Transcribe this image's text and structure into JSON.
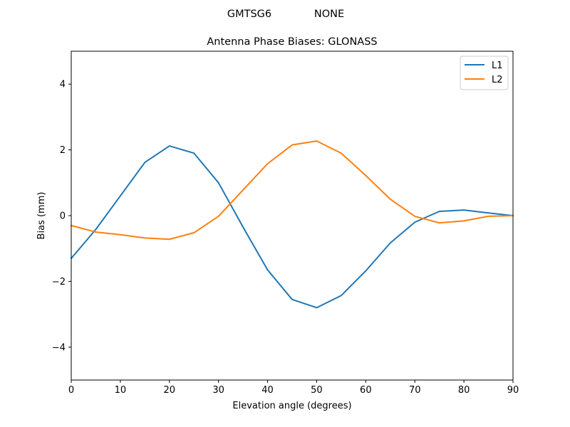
{
  "header": {
    "antenna": "GMTSG6",
    "radome": "NONE"
  },
  "chart_data": {
    "type": "line",
    "title": "Antenna Phase Biases: GLONASS",
    "xlabel": "Elevation angle (degrees)",
    "ylabel": "Bias (mm)",
    "xlim": [
      0,
      90
    ],
    "ylim": [
      -5,
      5
    ],
    "x_ticks": [
      0,
      10,
      20,
      30,
      40,
      50,
      60,
      70,
      80,
      90
    ],
    "y_ticks": [
      -4,
      -2,
      0,
      2,
      4
    ],
    "y_tick_labels": [
      "−4",
      "−2",
      "0",
      "2",
      "4"
    ],
    "legend_position": "top-right",
    "grid": false,
    "x": [
      0,
      5,
      10,
      15,
      20,
      25,
      30,
      35,
      40,
      45,
      50,
      55,
      60,
      65,
      70,
      75,
      80,
      85,
      90
    ],
    "series": [
      {
        "name": "L1",
        "color": "#1f77b4",
        "values": [
          -1.3,
          -0.42,
          0.6,
          1.62,
          2.12,
          1.9,
          1.0,
          -0.35,
          -1.65,
          -2.55,
          -2.8,
          -2.43,
          -1.68,
          -0.83,
          -0.2,
          0.13,
          0.17,
          0.08,
          0.0
        ]
      },
      {
        "name": "L2",
        "color": "#ff7f0e",
        "values": [
          -0.3,
          -0.5,
          -0.58,
          -0.68,
          -0.72,
          -0.52,
          -0.02,
          0.78,
          1.58,
          2.15,
          2.27,
          1.9,
          1.22,
          0.5,
          -0.02,
          -0.22,
          -0.16,
          -0.02,
          0.0
        ]
      }
    ]
  }
}
